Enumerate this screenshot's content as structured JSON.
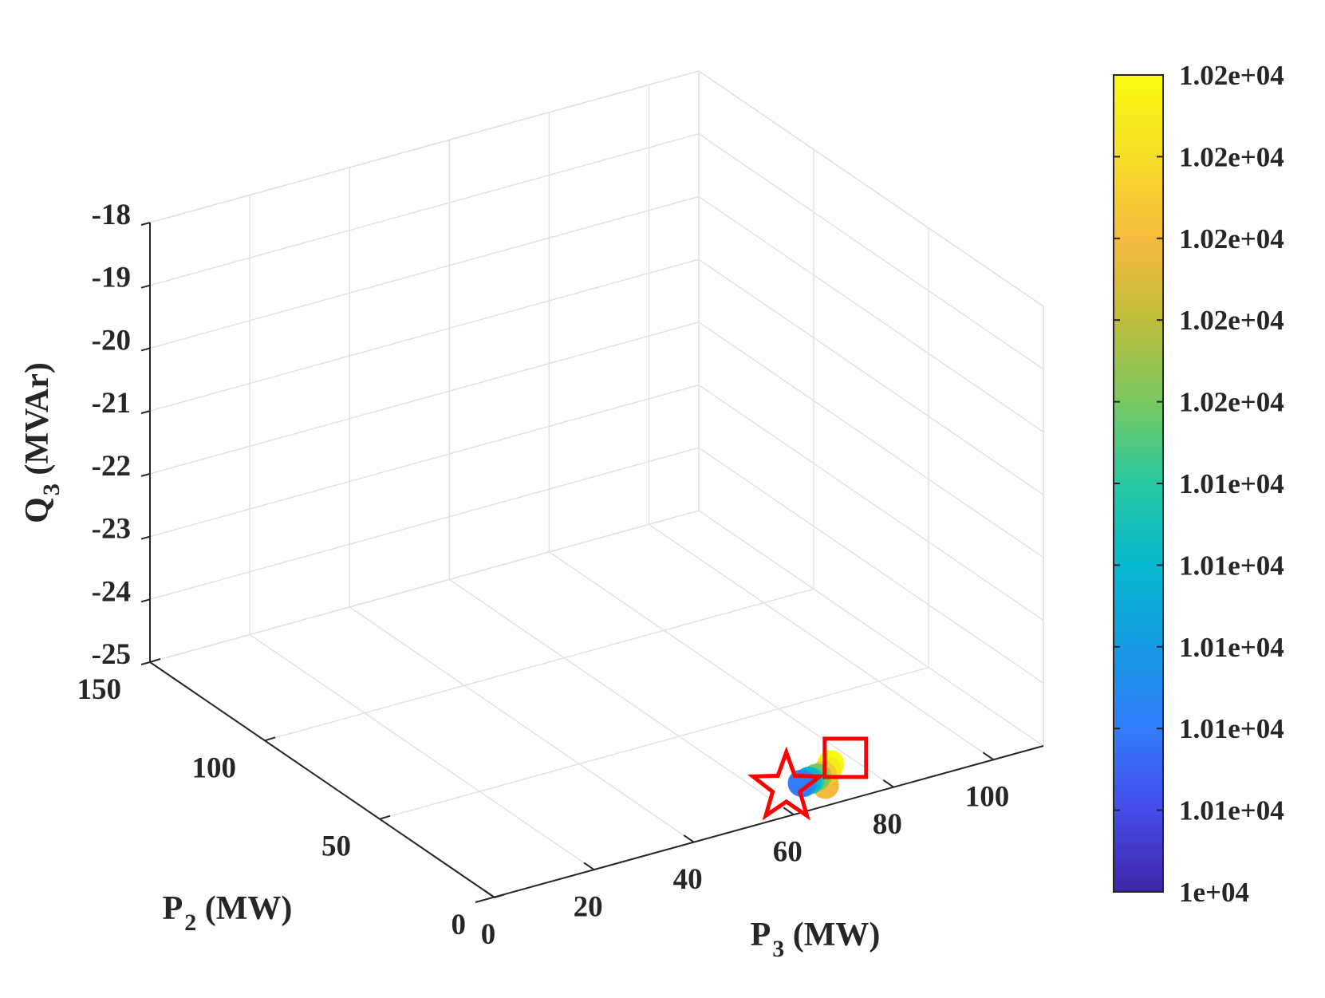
{
  "chart_data": {
    "type": "scatter",
    "projection": "3d",
    "title": "",
    "x_axis": {
      "label_main": "P",
      "label_sub": "3",
      "label_unit": "(MW)",
      "lim": [
        0,
        110
      ],
      "ticks": [
        0,
        20,
        40,
        60,
        80,
        100
      ]
    },
    "y_axis": {
      "label_main": "P",
      "label_sub": "2",
      "label_unit": "(MW)",
      "lim": [
        0,
        150
      ],
      "ticks": [
        0,
        50,
        100,
        150
      ]
    },
    "z_axis": {
      "label_main": "Q",
      "label_sub": "3",
      "label_unit": "(MVAr)",
      "lim": [
        -25,
        -18
      ],
      "ticks": [
        -25,
        -24,
        -23,
        -22,
        -21,
        -20,
        -19,
        -18
      ]
    },
    "grid": true,
    "colormap": "parula",
    "colorbar": {
      "ticks": [
        "1e+04",
        "1.01e+04",
        "1.01e+04",
        "1.01e+04",
        "1.01e+04",
        "1.01e+04",
        "1.02e+04",
        "1.02e+04",
        "1.02e+04",
        "1.02e+04",
        "1.02e+04"
      ],
      "range": [
        10000,
        10200
      ]
    },
    "series": [
      {
        "marker": "circle",
        "points": [
          {
            "x": 70,
            "y": 8,
            "z": -24.95,
            "c": 10160
          },
          {
            "x": 72,
            "y": 10,
            "z": -24.7,
            "c": 10200
          },
          {
            "x": 71,
            "y": 9,
            "z": -24.75,
            "c": 10190
          },
          {
            "x": 70,
            "y": 9,
            "z": -24.8,
            "c": 10170
          },
          {
            "x": 69,
            "y": 9,
            "z": -24.82,
            "c": 10140
          },
          {
            "x": 69,
            "y": 10,
            "z": -24.85,
            "c": 10120
          },
          {
            "x": 68,
            "y": 10,
            "z": -24.88,
            "c": 10100
          },
          {
            "x": 68,
            "y": 11,
            "z": -24.9,
            "c": 10080
          },
          {
            "x": 67,
            "y": 11,
            "z": -24.93,
            "c": 10060
          },
          {
            "x": 67,
            "y": 12,
            "z": -24.95,
            "c": 10040
          }
        ]
      },
      {
        "marker": "star",
        "color": "#ff0000",
        "points": [
          {
            "x": 64,
            "y": 12,
            "z": -24.95
          }
        ]
      },
      {
        "marker": "square",
        "color": "#ff0000",
        "points": [
          {
            "x": 74,
            "y": 8,
            "z": -24.6
          }
        ]
      }
    ]
  }
}
